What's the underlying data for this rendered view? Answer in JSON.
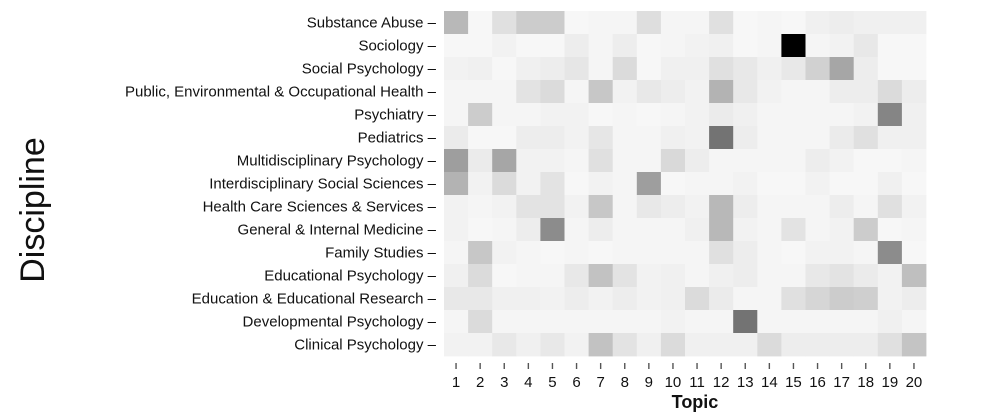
{
  "chart_data": {
    "type": "heatmap",
    "xlabel": "Topic",
    "ylabel": "Discipline",
    "x": [
      "1",
      "2",
      "3",
      "4",
      "5",
      "6",
      "7",
      "8",
      "9",
      "10",
      "11",
      "12",
      "13",
      "14",
      "15",
      "16",
      "17",
      "18",
      "19",
      "20"
    ],
    "y": [
      "Substance Abuse",
      "Sociology",
      "Social Psychology",
      "Public, Environmental & Occupational Health",
      "Psychiatry",
      "Pediatrics",
      "Multidisciplinary Psychology",
      "Interdisciplinary Social Sciences",
      "Health Care Sciences & Services",
      "General & Internal Medicine",
      "Family Studies",
      "Educational Psychology",
      "Education & Educational Research",
      "Developmental Psychology",
      "Clinical Psychology"
    ],
    "values": [
      [
        0.28,
        0.03,
        0.12,
        0.2,
        0.2,
        0.03,
        0.04,
        0.04,
        0.13,
        0.04,
        0.04,
        0.12,
        0.03,
        0.04,
        0.03,
        0.06,
        0.07,
        0.06,
        0.06,
        0.06
      ],
      [
        0.03,
        0.03,
        0.05,
        0.03,
        0.03,
        0.07,
        0.04,
        0.07,
        0.03,
        0.04,
        0.05,
        0.06,
        0.03,
        0.04,
        1.0,
        0.04,
        0.05,
        0.09,
        0.03,
        0.03
      ],
      [
        0.05,
        0.06,
        0.03,
        0.06,
        0.07,
        0.1,
        0.04,
        0.14,
        0.03,
        0.06,
        0.06,
        0.12,
        0.09,
        0.06,
        0.09,
        0.18,
        0.35,
        0.07,
        0.03,
        0.03
      ],
      [
        0.04,
        0.04,
        0.04,
        0.11,
        0.14,
        0.04,
        0.22,
        0.05,
        0.09,
        0.07,
        0.05,
        0.3,
        0.09,
        0.05,
        0.04,
        0.04,
        0.07,
        0.07,
        0.14,
        0.07
      ],
      [
        0.04,
        0.2,
        0.04,
        0.04,
        0.05,
        0.05,
        0.03,
        0.04,
        0.03,
        0.04,
        0.05,
        0.08,
        0.06,
        0.04,
        0.04,
        0.04,
        0.04,
        0.05,
        0.48,
        0.06
      ],
      [
        0.08,
        0.03,
        0.03,
        0.07,
        0.07,
        0.05,
        0.1,
        0.04,
        0.04,
        0.06,
        0.05,
        0.55,
        0.07,
        0.04,
        0.04,
        0.04,
        0.08,
        0.12,
        0.06,
        0.06
      ],
      [
        0.38,
        0.08,
        0.35,
        0.05,
        0.05,
        0.04,
        0.12,
        0.04,
        0.04,
        0.15,
        0.07,
        0.04,
        0.04,
        0.04,
        0.04,
        0.07,
        0.05,
        0.03,
        0.03,
        0.04
      ],
      [
        0.3,
        0.05,
        0.14,
        0.05,
        0.11,
        0.03,
        0.05,
        0.04,
        0.38,
        0.03,
        0.04,
        0.04,
        0.05,
        0.03,
        0.03,
        0.05,
        0.03,
        0.03,
        0.06,
        0.03
      ],
      [
        0.05,
        0.04,
        0.05,
        0.11,
        0.11,
        0.05,
        0.22,
        0.04,
        0.09,
        0.07,
        0.05,
        0.28,
        0.07,
        0.04,
        0.04,
        0.04,
        0.07,
        0.04,
        0.12,
        0.05
      ],
      [
        0.05,
        0.03,
        0.04,
        0.07,
        0.45,
        0.04,
        0.07,
        0.04,
        0.04,
        0.04,
        0.06,
        0.28,
        0.05,
        0.04,
        0.11,
        0.04,
        0.05,
        0.2,
        0.03,
        0.04
      ],
      [
        0.04,
        0.22,
        0.05,
        0.04,
        0.03,
        0.04,
        0.03,
        0.04,
        0.04,
        0.04,
        0.04,
        0.12,
        0.07,
        0.04,
        0.03,
        0.05,
        0.05,
        0.04,
        0.45,
        0.03
      ],
      [
        0.06,
        0.14,
        0.03,
        0.04,
        0.04,
        0.09,
        0.24,
        0.11,
        0.05,
        0.06,
        0.04,
        0.06,
        0.07,
        0.04,
        0.04,
        0.09,
        0.11,
        0.08,
        0.05,
        0.25
      ],
      [
        0.09,
        0.09,
        0.06,
        0.06,
        0.05,
        0.07,
        0.05,
        0.07,
        0.05,
        0.06,
        0.14,
        0.08,
        0.04,
        0.04,
        0.12,
        0.16,
        0.2,
        0.19,
        0.05,
        0.07
      ],
      [
        0.04,
        0.14,
        0.04,
        0.04,
        0.04,
        0.04,
        0.04,
        0.04,
        0.04,
        0.05,
        0.04,
        0.04,
        0.55,
        0.04,
        0.04,
        0.04,
        0.04,
        0.04,
        0.06,
        0.04
      ],
      [
        0.05,
        0.05,
        0.09,
        0.06,
        0.09,
        0.05,
        0.24,
        0.11,
        0.06,
        0.14,
        0.06,
        0.06,
        0.06,
        0.14,
        0.07,
        0.07,
        0.07,
        0.07,
        0.12,
        0.23
      ]
    ],
    "color_scale": {
      "low": "#ffffff",
      "high": "#000000"
    },
    "grid": false,
    "legend": "none"
  }
}
